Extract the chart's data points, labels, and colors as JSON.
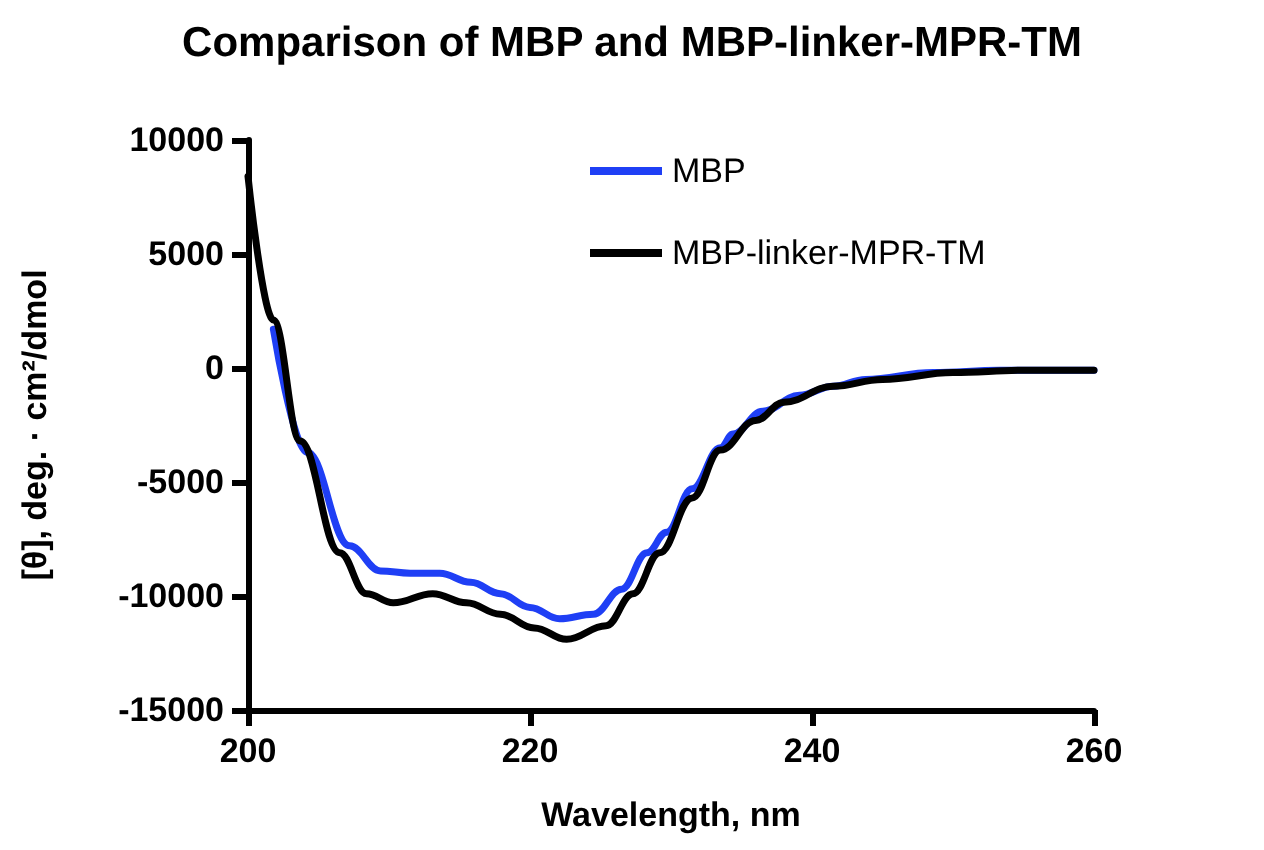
{
  "chart_data": {
    "type": "line",
    "title": "Comparison of MBP and MBP-linker-MPR-TM",
    "xlabel": "Wavelength, nm",
    "ylabel": "[θ], deg. · cm²/dmol",
    "xlim": [
      200,
      260
    ],
    "xticks": [
      200,
      220,
      240,
      260
    ],
    "ylim": [
      -15000,
      10000
    ],
    "yticks": [
      -15000,
      -10000,
      -5000,
      0,
      5000,
      10000
    ],
    "grid": false,
    "legend": "top right",
    "marker": "none",
    "line_style": "solid",
    "series": [
      {
        "name": "MBP",
        "color": "#1f3ff5",
        "x": [
          201.8,
          204.2,
          207.2,
          209.4,
          211.5,
          213.6,
          215.8,
          217.9,
          220,
          222.1,
          224.5,
          226.5,
          228.3,
          229.7,
          231.5,
          233.5,
          234.4,
          236.5,
          239.1,
          241.5,
          243.8,
          248.6,
          253.3,
          260
        ],
        "values": [
          1700,
          -3700,
          -7800,
          -8900,
          -9000,
          -9000,
          -9400,
          -9900,
          -10500,
          -11000,
          -10800,
          -9700,
          -8100,
          -7200,
          -5300,
          -3500,
          -2900,
          -1900,
          -1200,
          -800,
          -500,
          -200,
          -100,
          -100
        ]
      },
      {
        "name": "MBP-linker-MPR-TM",
        "color": "#000000",
        "x": [
          200,
          201.8,
          203.7,
          206.5,
          208.4,
          210.3,
          213.1,
          215.5,
          217.9,
          220.3,
          222.6,
          225.4,
          227.3,
          229.2,
          231.5,
          233.5,
          236,
          238,
          241.5,
          245,
          250,
          255,
          260
        ],
        "values": [
          8400,
          2100,
          -3200,
          -8100,
          -9900,
          -10300,
          -9900,
          -10300,
          -10800,
          -11400,
          -11900,
          -11300,
          -9900,
          -8100,
          -5700,
          -3600,
          -2300,
          -1500,
          -800,
          -500,
          -200,
          -100,
          -100
        ]
      }
    ]
  }
}
